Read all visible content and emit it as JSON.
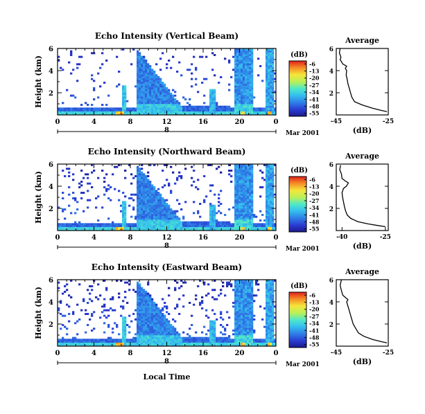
{
  "x_axis_title": "Local Time",
  "date_label": "Mar 2001",
  "colorbar": {
    "unit_label": "(dB)",
    "ticks": [
      "-6",
      "-13",
      "-20",
      "-27",
      "-34",
      "-41",
      "-48",
      "-55"
    ],
    "range": [
      -58,
      -3
    ]
  },
  "chart_data": [
    {
      "type": "heatmap",
      "title": "Echo Intensity (Vertical Beam)",
      "ylabel": "Height (km)",
      "xlabel": "Local Time",
      "x_ticks": [
        "0",
        "4",
        "8",
        "12",
        "16",
        "20",
        "0"
      ],
      "x_range_hours": [
        0,
        24
      ],
      "day_marker": "8",
      "y_ticks": [
        "6",
        "4",
        "2"
      ],
      "y_range_km": [
        0,
        6
      ],
      "z_unit": "dB",
      "z_range": [
        -58,
        -3
      ],
      "average_profile": {
        "title": "Average",
        "xlabel": "(dB)",
        "x_ticks": [
          "-45",
          "-25"
        ],
        "x_range": [
          -45,
          -25
        ],
        "y_ticks": [
          "6",
          "4",
          "2"
        ],
        "points": [
          [
            -43.5,
            6.0
          ],
          [
            -43.8,
            5.6
          ],
          [
            -43.2,
            5.2
          ],
          [
            -43.5,
            5.0
          ],
          [
            -43.0,
            4.8
          ],
          [
            -42.5,
            4.6
          ],
          [
            -41.0,
            4.4
          ],
          [
            -41.5,
            4.2
          ],
          [
            -41.0,
            4.0
          ],
          [
            -41.2,
            3.6
          ],
          [
            -40.8,
            3.2
          ],
          [
            -40.5,
            2.8
          ],
          [
            -40.0,
            2.4
          ],
          [
            -39.5,
            2.0
          ],
          [
            -39.0,
            1.6
          ],
          [
            -38.0,
            1.2
          ],
          [
            -35.0,
            0.9
          ],
          [
            -31.0,
            0.6
          ],
          [
            -27.5,
            0.4
          ],
          [
            -25.5,
            0.3
          ]
        ]
      }
    },
    {
      "type": "heatmap",
      "title": "Echo Intensity (Northward Beam)",
      "ylabel": "Height (km)",
      "xlabel": "Local Time",
      "x_ticks": [
        "0",
        "4",
        "8",
        "12",
        "16",
        "20",
        "0"
      ],
      "x_range_hours": [
        0,
        24
      ],
      "day_marker": "8",
      "y_ticks": [
        "6",
        "4",
        "2"
      ],
      "y_range_km": [
        0,
        6
      ],
      "z_unit": "dB",
      "z_range": [
        -58,
        -3
      ],
      "average_profile": {
        "title": "Average",
        "xlabel": "(dB)",
        "x_ticks": [
          "-40",
          "-25"
        ],
        "x_range": [
          -42,
          -24
        ],
        "y_ticks": [
          "6",
          "4",
          "2"
        ],
        "points": [
          [
            -40.5,
            5.9
          ],
          [
            -40.8,
            5.5
          ],
          [
            -40.2,
            5.1
          ],
          [
            -40.0,
            4.7
          ],
          [
            -39.0,
            4.5
          ],
          [
            -37.8,
            4.3
          ],
          [
            -38.5,
            4.0
          ],
          [
            -39.5,
            3.8
          ],
          [
            -40.0,
            3.4
          ],
          [
            -39.8,
            3.0
          ],
          [
            -39.5,
            2.6
          ],
          [
            -39.2,
            2.2
          ],
          [
            -38.8,
            1.8
          ],
          [
            -38.2,
            1.4
          ],
          [
            -37.0,
            1.1
          ],
          [
            -34.5,
            0.8
          ],
          [
            -31.0,
            0.6
          ],
          [
            -27.5,
            0.45
          ],
          [
            -25.0,
            0.35
          ]
        ]
      }
    },
    {
      "type": "heatmap",
      "title": "Echo Intensity (Eastward Beam)",
      "ylabel": "Height (km)",
      "xlabel": "Local Time",
      "x_ticks": [
        "0",
        "4",
        "8",
        "12",
        "16",
        "20",
        "0"
      ],
      "x_range_hours": [
        0,
        24
      ],
      "day_marker": "8",
      "y_ticks": [
        "6",
        "4",
        "2"
      ],
      "y_range_km": [
        0,
        6
      ],
      "z_unit": "dB",
      "z_range": [
        -58,
        -3
      ],
      "average_profile": {
        "title": "Average",
        "xlabel": "(dB)",
        "x_ticks": [
          "-45",
          "-25"
        ],
        "x_range": [
          -45,
          -25
        ],
        "y_ticks": [
          "6",
          "4",
          "2"
        ],
        "points": [
          [
            -43.0,
            6.0
          ],
          [
            -43.5,
            5.5
          ],
          [
            -43.0,
            5.0
          ],
          [
            -42.5,
            4.6
          ],
          [
            -41.5,
            4.4
          ],
          [
            -40.5,
            4.2
          ],
          [
            -41.0,
            4.0
          ],
          [
            -40.5,
            3.6
          ],
          [
            -40.0,
            3.2
          ],
          [
            -39.5,
            2.8
          ],
          [
            -39.0,
            2.4
          ],
          [
            -38.5,
            2.0
          ],
          [
            -37.5,
            1.6
          ],
          [
            -36.5,
            1.2
          ],
          [
            -34.5,
            0.9
          ],
          [
            -31.0,
            0.6
          ],
          [
            -27.5,
            0.4
          ],
          [
            -25.5,
            0.3
          ]
        ]
      }
    }
  ]
}
